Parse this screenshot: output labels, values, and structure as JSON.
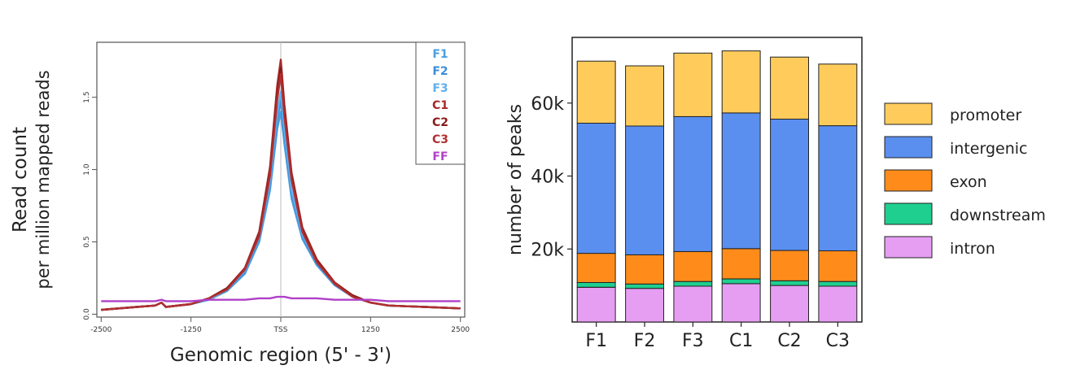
{
  "chart_data": [
    {
      "type": "line",
      "xlabel": "Genomic region (5' - 3')",
      "ylabel_lines": [
        "Read count",
        "per million mapped reads"
      ],
      "x_ticks": [
        {
          "value": -2500,
          "label": "-2500"
        },
        {
          "value": -1250,
          "label": "-1250"
        },
        {
          "value": 0,
          "label": "TSS"
        },
        {
          "value": 1250,
          "label": "1250"
        },
        {
          "value": 2500,
          "label": "2500"
        }
      ],
      "y_ticks": [
        {
          "value": 0.0,
          "label": "0.0"
        },
        {
          "value": 0.5,
          "label": "0.5"
        },
        {
          "value": 1.0,
          "label": "1.0"
        },
        {
          "value": 1.5,
          "label": "1.5"
        }
      ],
      "xlim": [
        -2560,
        2560
      ],
      "ylim": [
        -0.02,
        1.88
      ],
      "reference_line_x": 0,
      "legend_position": "top-right",
      "x": [
        -2500,
        -2000,
        -1750,
        -1660,
        -1600,
        -1250,
        -1000,
        -750,
        -500,
        -300,
        -150,
        -50,
        0,
        50,
        150,
        300,
        500,
        750,
        1000,
        1250,
        1500,
        2000,
        2500
      ],
      "series": [
        {
          "name": "F1",
          "color": "#4a9ee0",
          "values": [
            0.03,
            0.05,
            0.06,
            0.08,
            0.05,
            0.07,
            0.1,
            0.16,
            0.28,
            0.5,
            0.86,
            1.28,
            1.4,
            1.18,
            0.8,
            0.52,
            0.34,
            0.2,
            0.12,
            0.08,
            0.06,
            0.05,
            0.04
          ]
        },
        {
          "name": "F2",
          "color": "#3b8ddb",
          "values": [
            0.03,
            0.05,
            0.06,
            0.08,
            0.05,
            0.07,
            0.1,
            0.17,
            0.29,
            0.52,
            0.9,
            1.34,
            1.48,
            1.24,
            0.84,
            0.54,
            0.35,
            0.21,
            0.12,
            0.08,
            0.06,
            0.05,
            0.04
          ]
        },
        {
          "name": "F3",
          "color": "#5fb0ee",
          "values": [
            0.03,
            0.05,
            0.06,
            0.08,
            0.05,
            0.07,
            0.1,
            0.17,
            0.3,
            0.53,
            0.92,
            1.38,
            1.54,
            1.28,
            0.86,
            0.55,
            0.36,
            0.21,
            0.12,
            0.08,
            0.06,
            0.05,
            0.04
          ]
        },
        {
          "name": "C1",
          "color": "#a52a2a",
          "values": [
            0.03,
            0.05,
            0.06,
            0.08,
            0.05,
            0.07,
            0.11,
            0.18,
            0.32,
            0.57,
            1.02,
            1.58,
            1.76,
            1.45,
            0.98,
            0.6,
            0.38,
            0.22,
            0.13,
            0.08,
            0.06,
            0.05,
            0.04
          ]
        },
        {
          "name": "C2",
          "color": "#8b1a1a",
          "values": [
            0.03,
            0.05,
            0.06,
            0.08,
            0.05,
            0.07,
            0.11,
            0.18,
            0.31,
            0.55,
            0.98,
            1.52,
            1.7,
            1.4,
            0.95,
            0.58,
            0.37,
            0.21,
            0.13,
            0.08,
            0.06,
            0.05,
            0.04
          ]
        },
        {
          "name": "C3",
          "color": "#b03030",
          "values": [
            0.03,
            0.05,
            0.06,
            0.08,
            0.05,
            0.07,
            0.11,
            0.17,
            0.31,
            0.54,
            0.96,
            1.48,
            1.66,
            1.37,
            0.93,
            0.57,
            0.36,
            0.21,
            0.12,
            0.08,
            0.06,
            0.05,
            0.04
          ]
        },
        {
          "name": "FF",
          "color": "#b040c8",
          "values": [
            0.09,
            0.09,
            0.09,
            0.1,
            0.09,
            0.09,
            0.1,
            0.1,
            0.1,
            0.11,
            0.11,
            0.12,
            0.12,
            0.12,
            0.11,
            0.11,
            0.11,
            0.1,
            0.1,
            0.1,
            0.09,
            0.09,
            0.09
          ]
        }
      ]
    },
    {
      "type": "bar",
      "stacked": true,
      "ylabel": "number of peaks",
      "ylim": [
        0,
        78000
      ],
      "y_ticks": [
        {
          "value": 20000,
          "label": "20k"
        },
        {
          "value": 40000,
          "label": "40k"
        },
        {
          "value": 60000,
          "label": "60k"
        }
      ],
      "categories": [
        "F1",
        "F2",
        "F3",
        "C1",
        "C2",
        "C3"
      ],
      "legend_position": "right",
      "series": [
        {
          "name": "intron",
          "color": "#e59ef2",
          "values": [
            9500,
            9200,
            9800,
            10500,
            10000,
            9800
          ]
        },
        {
          "name": "downstream",
          "color": "#1fcf8f",
          "values": [
            1300,
            1200,
            1300,
            1300,
            1300,
            1300
          ]
        },
        {
          "name": "exon",
          "color": "#ff8c1a",
          "values": [
            8000,
            8000,
            8200,
            8300,
            8300,
            8400
          ]
        },
        {
          "name": "intergenic",
          "color": "#5a8ff0",
          "values": [
            35700,
            35300,
            37000,
            37200,
            36000,
            34300
          ]
        },
        {
          "name": "promoter",
          "color": "#ffcc5c",
          "values": [
            17000,
            16500,
            17400,
            17000,
            17000,
            16900
          ]
        }
      ],
      "legend_order": [
        "promoter",
        "intergenic",
        "exon",
        "downstream",
        "intron"
      ]
    }
  ]
}
